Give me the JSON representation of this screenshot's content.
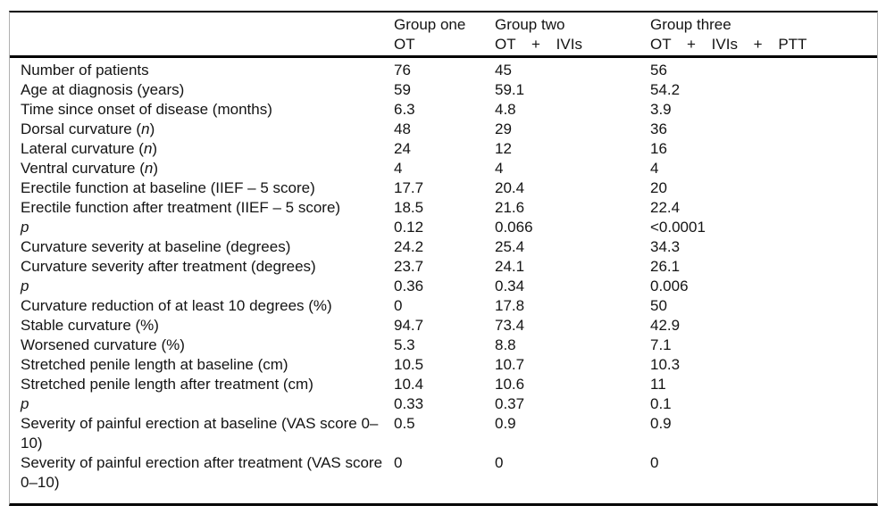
{
  "table": {
    "header": {
      "corner": "",
      "groups": [
        {
          "line1": "Group one",
          "line2": "OT"
        },
        {
          "line1": "Group two",
          "line2": "OT + IVIs"
        },
        {
          "line1": "Group three",
          "line2": "OT + IVIs + PTT"
        }
      ]
    },
    "rows": [
      {
        "label": [
          {
            "text": "Number of patients",
            "italic": false
          }
        ],
        "values": [
          "76",
          "45",
          "56"
        ]
      },
      {
        "label": [
          {
            "text": "Age at diagnosis (years)",
            "italic": false
          }
        ],
        "values": [
          "59",
          "59.1",
          "54.2"
        ]
      },
      {
        "label": [
          {
            "text": "Time since onset of disease (months)",
            "italic": false
          }
        ],
        "values": [
          "6.3",
          "4.8",
          "3.9"
        ]
      },
      {
        "label": [
          {
            "text": "Dorsal curvature (",
            "italic": false
          },
          {
            "text": "n",
            "italic": true
          },
          {
            "text": ")",
            "italic": false
          }
        ],
        "values": [
          "48",
          "29",
          "36"
        ]
      },
      {
        "label": [
          {
            "text": "Lateral curvature (",
            "italic": false
          },
          {
            "text": "n",
            "italic": true
          },
          {
            "text": ")",
            "italic": false
          }
        ],
        "values": [
          "24",
          "12",
          "16"
        ]
      },
      {
        "label": [
          {
            "text": "Ventral curvature (",
            "italic": false
          },
          {
            "text": "n",
            "italic": true
          },
          {
            "text": ")",
            "italic": false
          }
        ],
        "values": [
          "4",
          "4",
          "4"
        ]
      },
      {
        "label": [
          {
            "text": "Erectile function at baseline (IIEF – 5 score)",
            "italic": false
          }
        ],
        "values": [
          "17.7",
          "20.4",
          "20"
        ]
      },
      {
        "label": [
          {
            "text": "Erectile function after treatment (IIEF – 5 score)",
            "italic": false
          }
        ],
        "values": [
          "18.5",
          "21.6",
          "22.4"
        ]
      },
      {
        "label": [
          {
            "text": "p",
            "italic": true
          }
        ],
        "values": [
          "0.12",
          "0.066",
          "<0.0001"
        ]
      },
      {
        "label": [
          {
            "text": "Curvature severity at baseline (degrees)",
            "italic": false
          }
        ],
        "values": [
          "24.2",
          "25.4",
          "34.3"
        ]
      },
      {
        "label": [
          {
            "text": "Curvature severity after treatment (degrees)",
            "italic": false
          }
        ],
        "values": [
          "23.7",
          "24.1",
          "26.1"
        ]
      },
      {
        "label": [
          {
            "text": "p",
            "italic": true
          }
        ],
        "values": [
          "0.36",
          "0.34",
          "0.006"
        ]
      },
      {
        "label": [
          {
            "text": "Curvature reduction of at least 10 degrees (%)",
            "italic": false
          }
        ],
        "values": [
          "0",
          "17.8",
          "50"
        ]
      },
      {
        "label": [
          {
            "text": "Stable curvature (%)",
            "italic": false
          }
        ],
        "values": [
          "94.7",
          "73.4",
          "42.9"
        ]
      },
      {
        "label": [
          {
            "text": "Worsened curvature (%)",
            "italic": false
          }
        ],
        "values": [
          "5.3",
          "8.8",
          "7.1"
        ]
      },
      {
        "label": [
          {
            "text": "Stretched penile length at baseline (cm)",
            "italic": false
          }
        ],
        "values": [
          "10.5",
          "10.7",
          "10.3"
        ]
      },
      {
        "label": [
          {
            "text": "Stretched penile length after treatment (cm)",
            "italic": false
          }
        ],
        "values": [
          "10.4",
          "10.6",
          "11"
        ]
      },
      {
        "label": [
          {
            "text": "p",
            "italic": true
          }
        ],
        "values": [
          "0.33",
          "0.37",
          "0.1"
        ]
      },
      {
        "label": [
          {
            "text": "Severity of painful erection at baseline (VAS score 0–10)",
            "italic": false
          }
        ],
        "values": [
          "0.5",
          "0.9",
          "0.9"
        ]
      },
      {
        "label": [
          {
            "text": "Severity of painful erection after treatment (VAS score 0–10)",
            "italic": false
          }
        ],
        "values": [
          "0",
          "0",
          "0"
        ]
      }
    ]
  },
  "colors": {
    "background": "#ffffff",
    "text": "#141414",
    "rule": "#000000",
    "side_border": "#b0b0b0"
  }
}
